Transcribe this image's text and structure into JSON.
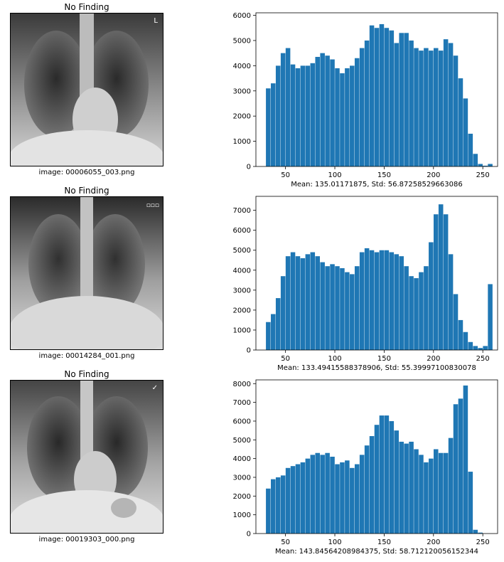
{
  "colors": {
    "bar": "#1f77b4",
    "axis": "#000000",
    "image_border": "#000000"
  },
  "panels": [
    {
      "title": "No Finding",
      "caption": "image: 00006055_003.png",
      "marker": "L"
    },
    {
      "title": "No Finding",
      "caption": "image: 00014284_001.png",
      "marker": "▫▫▫"
    },
    {
      "title": "No Finding",
      "caption": "image: 00019303_000.png",
      "marker": "✓"
    }
  ],
  "chart_data": [
    {
      "type": "bar",
      "xlabel": "Mean: 135.01171875, Std: 56.87258529663086",
      "ylabel": "",
      "xlim": [
        20,
        265
      ],
      "ylim": [
        0,
        6100
      ],
      "xticks": [
        50,
        100,
        150,
        200,
        250
      ],
      "yticks": [
        0,
        1000,
        2000,
        3000,
        4000,
        5000,
        6000
      ],
      "grid": false,
      "series": [
        {
          "x": [
            30,
            35,
            40,
            45,
            50,
            55,
            60,
            65,
            70,
            75,
            80,
            85,
            90,
            95,
            100,
            105,
            110,
            115,
            120,
            125,
            130,
            135,
            140,
            145,
            150,
            155,
            160,
            165,
            170,
            175,
            180,
            185,
            190,
            195,
            200,
            205,
            210,
            215,
            220,
            225,
            230,
            235,
            240,
            245,
            250,
            255
          ],
          "values": [
            3100,
            3300,
            4000,
            4500,
            4700,
            4050,
            3900,
            4000,
            4000,
            4100,
            4350,
            4500,
            4400,
            4250,
            3900,
            3700,
            3900,
            4000,
            4300,
            4700,
            5000,
            5600,
            5500,
            5650,
            5500,
            5400,
            4900,
            5300,
            5300,
            5000,
            4700,
            4600,
            4700,
            4600,
            4700,
            4600,
            5050,
            4900,
            4400,
            3500,
            2700,
            1300,
            500,
            100,
            30,
            100
          ]
        }
      ]
    },
    {
      "type": "bar",
      "xlabel": "Mean: 133.49415588378906, Std: 55.39997100830078",
      "ylabel": "",
      "xlim": [
        20,
        265
      ],
      "ylim": [
        0,
        7700
      ],
      "xticks": [
        50,
        100,
        150,
        200,
        250
      ],
      "yticks": [
        0,
        1000,
        2000,
        3000,
        4000,
        5000,
        6000,
        7000
      ],
      "grid": false,
      "series": [
        {
          "x": [
            30,
            35,
            40,
            45,
            50,
            55,
            60,
            65,
            70,
            75,
            80,
            85,
            90,
            95,
            100,
            105,
            110,
            115,
            120,
            125,
            130,
            135,
            140,
            145,
            150,
            155,
            160,
            165,
            170,
            175,
            180,
            185,
            190,
            195,
            200,
            205,
            210,
            215,
            220,
            225,
            230,
            235,
            240,
            245,
            250,
            255
          ],
          "values": [
            1400,
            1800,
            2600,
            3700,
            4700,
            4900,
            4700,
            4600,
            4800,
            4900,
            4700,
            4400,
            4200,
            4300,
            4200,
            4100,
            3900,
            3800,
            4200,
            4900,
            5100,
            5000,
            4900,
            5000,
            5000,
            4900,
            4800,
            4700,
            4200,
            3700,
            3600,
            3900,
            4200,
            5400,
            6800,
            7300,
            6800,
            4800,
            2800,
            1500,
            900,
            400,
            200,
            100,
            200,
            3300
          ]
        }
      ]
    },
    {
      "type": "bar",
      "xlabel": "Mean: 143.84564208984375, Std: 58.712120056152344",
      "ylabel": "",
      "xlim": [
        20,
        265
      ],
      "ylim": [
        0,
        8200
      ],
      "xticks": [
        50,
        100,
        150,
        200,
        250
      ],
      "yticks": [
        0,
        1000,
        2000,
        3000,
        4000,
        5000,
        6000,
        7000,
        8000
      ],
      "grid": false,
      "series": [
        {
          "x": [
            30,
            35,
            40,
            45,
            50,
            55,
            60,
            65,
            70,
            75,
            80,
            85,
            90,
            95,
            100,
            105,
            110,
            115,
            120,
            125,
            130,
            135,
            140,
            145,
            150,
            155,
            160,
            165,
            170,
            175,
            180,
            185,
            190,
            195,
            200,
            205,
            210,
            215,
            220,
            225,
            230,
            235,
            240,
            245,
            250,
            255
          ],
          "values": [
            2400,
            2900,
            3000,
            3100,
            3500,
            3600,
            3700,
            3800,
            4000,
            4200,
            4300,
            4200,
            4300,
            4100,
            3700,
            3800,
            3900,
            3500,
            3700,
            4200,
            4700,
            5200,
            5800,
            6300,
            6300,
            6000,
            5500,
            4900,
            4800,
            4900,
            4500,
            4200,
            3800,
            4000,
            4500,
            4300,
            4300,
            5100,
            6900,
            7200,
            7900,
            3300,
            200,
            50,
            0,
            0
          ]
        }
      ]
    }
  ]
}
